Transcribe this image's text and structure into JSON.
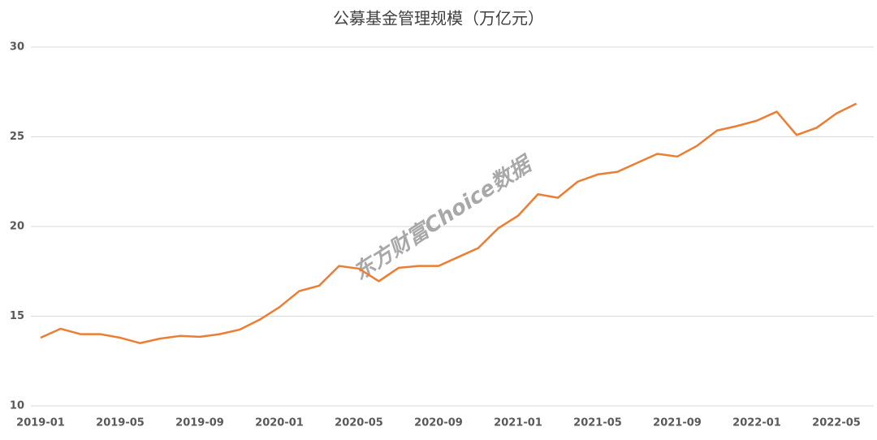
{
  "chart_data": {
    "type": "line",
    "title": "公募基金管理规模（万亿元）",
    "watermark": "东方财富Choice数据",
    "categories": [
      "2019-01",
      null,
      null,
      null,
      "2019-05",
      null,
      null,
      null,
      "2019-09",
      null,
      null,
      null,
      "2020-01",
      null,
      null,
      null,
      "2020-05",
      null,
      null,
      null,
      "2020-09",
      null,
      null,
      null,
      "2021-01",
      null,
      null,
      null,
      "2021-05",
      null,
      null,
      null,
      "2021-09",
      null,
      null,
      null,
      "2022-01",
      null,
      null,
      null,
      "2022-05",
      null
    ],
    "series": [
      {
        "name": "公募基金管理规模",
        "color": "#ed7d31",
        "values": [
          13.8,
          14.3,
          14.0,
          14.0,
          13.8,
          13.5,
          13.75,
          13.9,
          13.85,
          14.0,
          14.25,
          14.8,
          15.5,
          16.4,
          16.7,
          17.8,
          17.65,
          16.95,
          17.7,
          17.8,
          17.8,
          18.3,
          18.8,
          19.9,
          20.6,
          21.8,
          21.6,
          22.5,
          22.9,
          23.05,
          23.55,
          24.05,
          23.9,
          24.5,
          25.35,
          25.6,
          25.9,
          26.4,
          25.1,
          25.5,
          26.3,
          26.85
        ]
      }
    ],
    "ylim": [
      10,
      30
    ],
    "yticks": [
      10,
      15,
      20,
      25,
      30
    ],
    "grid": true
  }
}
